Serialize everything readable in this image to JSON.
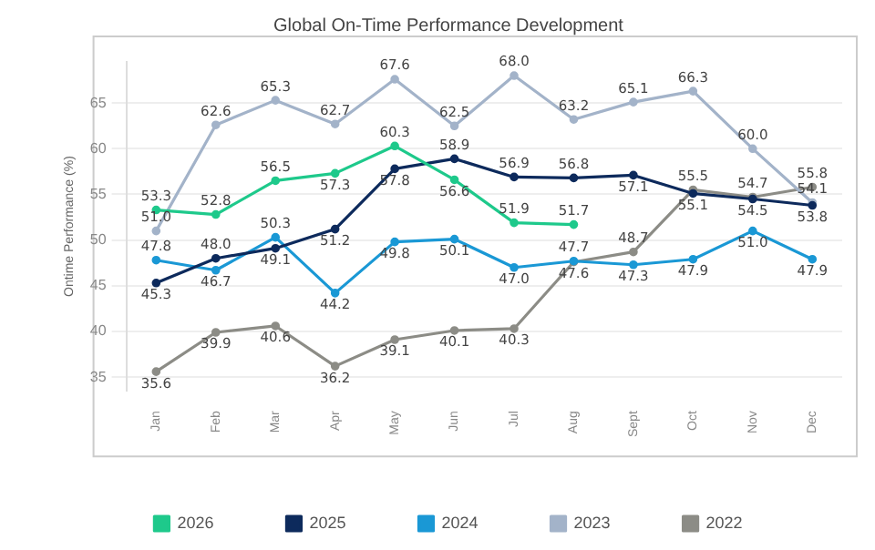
{
  "chart_data": {
    "type": "line",
    "title": "Global On-Time Performance Development",
    "ylabel": "Ontime Performance (%)",
    "categories": [
      "Jan",
      "Feb",
      "Mar",
      "Apr",
      "May",
      "Jun",
      "Jul",
      "Aug",
      "Sept",
      "Oct",
      "Nov",
      "Dec"
    ],
    "series": [
      {
        "name": "2026",
        "color": "#1ec98b",
        "values": [
          53.3,
          52.8,
          56.5,
          57.3,
          60.3,
          56.6,
          51.9,
          51.7,
          null,
          null,
          null,
          null
        ],
        "value_labels": [
          "53.3",
          "52.8",
          "56.5",
          "57.3",
          "60.3",
          "56.6",
          "51.9",
          "51.7",
          null,
          null,
          null,
          null
        ]
      },
      {
        "name": "2025",
        "color": "#0d2a5c",
        "values": [
          45.3,
          48.0,
          49.1,
          51.2,
          57.8,
          58.9,
          56.9,
          56.8,
          57.1,
          55.1,
          54.5,
          53.8
        ],
        "value_labels": [
          "45.3",
          "48.0",
          "49.1",
          "51.2",
          "57.8",
          "58.9",
          "56.9",
          "56.8",
          "57.1",
          "55.1",
          "54.5",
          "53.8"
        ]
      },
      {
        "name": "2024",
        "color": "#1a98d5",
        "values": [
          47.8,
          46.7,
          50.3,
          44.2,
          49.8,
          50.1,
          47.0,
          47.7,
          47.3,
          47.9,
          51.0,
          47.9
        ],
        "value_labels": [
          "47.8",
          "46.7",
          "50.3",
          "44.2",
          "49.8",
          "50.1",
          "47.0",
          "47.7",
          "47.3",
          "47.9",
          "51.0",
          "47.9"
        ]
      },
      {
        "name": "2023",
        "color": "#a3b3c9",
        "values": [
          51.0,
          62.6,
          65.3,
          62.7,
          67.6,
          62.5,
          68.0,
          63.2,
          65.1,
          66.3,
          60.0,
          54.1
        ],
        "value_labels": [
          "51.0",
          "62.6",
          "65.3",
          "62.7",
          "67.6",
          "62.5",
          "68.0",
          "63.2",
          "65.1",
          "66.3",
          "60.0",
          "54.1"
        ]
      },
      {
        "name": "2022",
        "color": "#8c8c86",
        "values": [
          35.6,
          39.9,
          40.6,
          36.2,
          39.1,
          40.1,
          40.3,
          47.6,
          48.7,
          55.5,
          54.7,
          55.8
        ],
        "value_labels": [
          "35.6",
          "39.9",
          "40.6",
          "36.2",
          "39.1",
          "40.1",
          "40.3",
          "47.6",
          "48.7",
          "55.5",
          "54.7",
          "55.8"
        ]
      }
    ],
    "ylim": [
      33.5,
      69.5
    ],
    "yticks": [
      35,
      40,
      45,
      50,
      55,
      60,
      65
    ],
    "grid": "y",
    "legend": "bottom",
    "marker": "circle",
    "line_style": "solid"
  }
}
